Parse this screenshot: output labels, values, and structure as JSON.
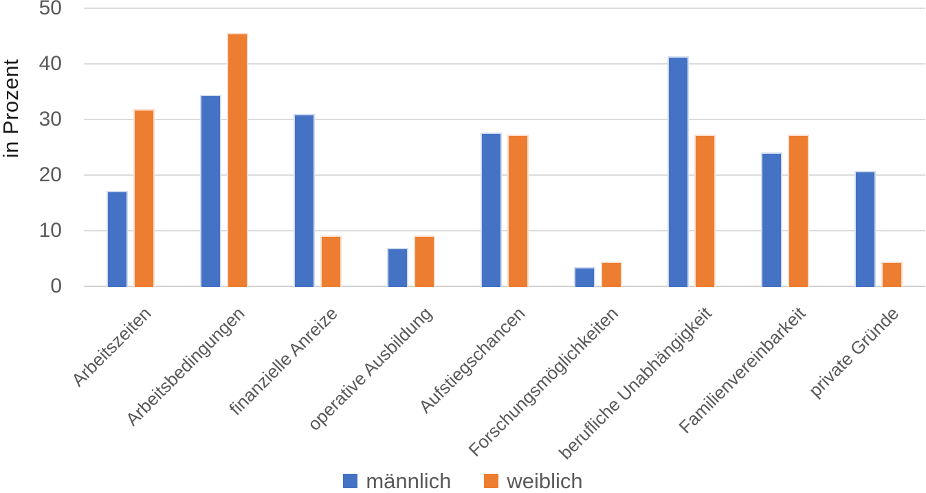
{
  "chart_data": {
    "type": "bar",
    "title": "",
    "xlabel": "",
    "ylabel": "in Prozent",
    "ylim": [
      0,
      50
    ],
    "yticks": [
      0,
      10,
      20,
      30,
      40,
      50
    ],
    "grid": true,
    "legend_position": "bottom",
    "categories": [
      "Arbeitszeiten",
      "Arbeitsbedingungen",
      "finanzielle Anreize",
      "operative Ausbildung",
      "Aufstiegschancen",
      "Forschungsmöglichkeiten",
      "berufliche Unabhängigkeit",
      "Familienvereinbarkeit",
      "private Gründe"
    ],
    "series": [
      {
        "name": "männlich",
        "color": "#4472C4",
        "values": [
          17.2,
          34.5,
          31.0,
          6.9,
          27.6,
          3.4,
          41.4,
          24.1,
          20.7
        ]
      },
      {
        "name": "weiblich",
        "color": "#ED7D31",
        "values": [
          31.8,
          45.5,
          9.1,
          9.1,
          27.3,
          4.5,
          27.3,
          27.3,
          4.5
        ]
      }
    ]
  },
  "colors": {
    "gridline": "#DCDCDC",
    "axis_baseline": "#D0D0D0",
    "tick_text": "#595959",
    "category_text": "#595959",
    "legend_text": "#595959",
    "y_title_text": "#1A1A1A",
    "background": "#FFFFFF"
  }
}
